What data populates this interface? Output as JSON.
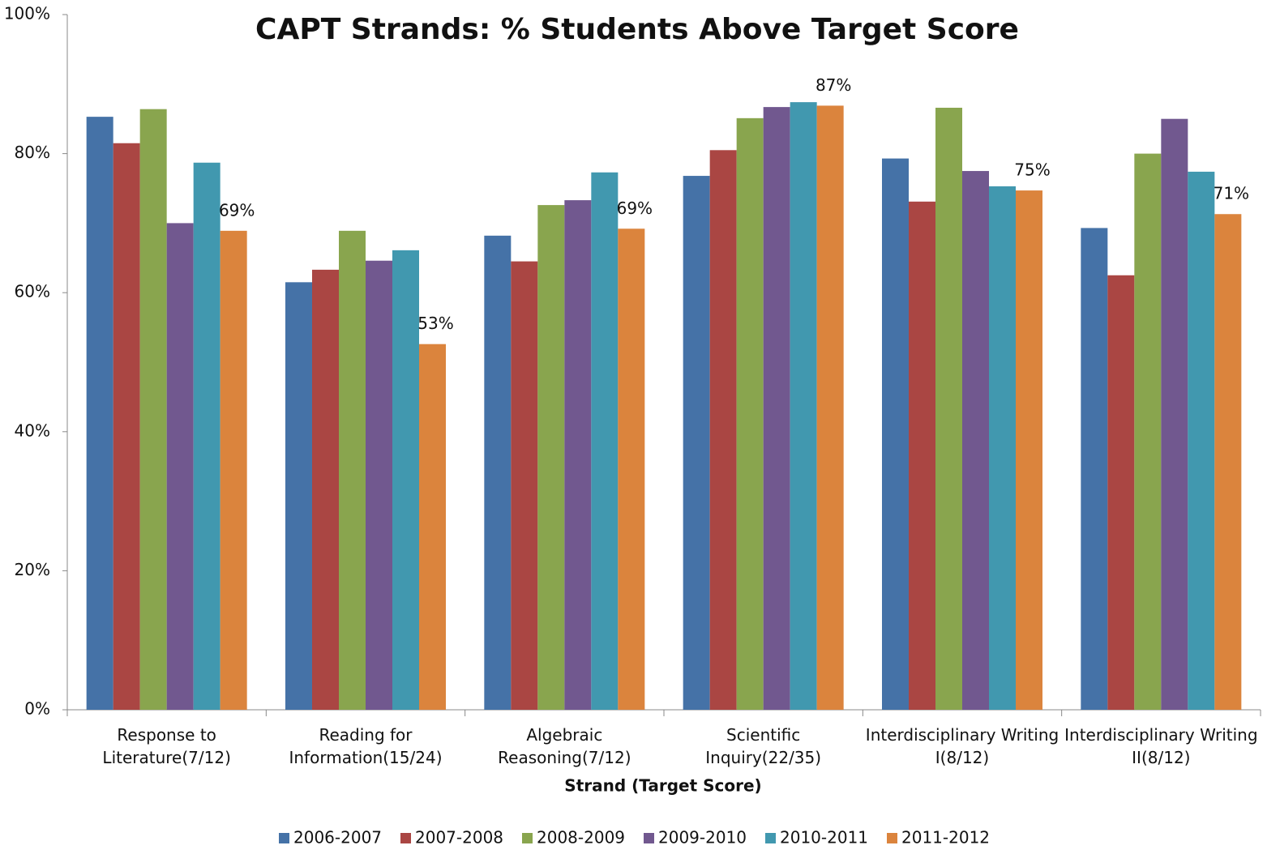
{
  "chart_data": {
    "type": "bar",
    "title": "CAPT Strands: % Students Above Target Score",
    "x_label": "Strand (Target Score)",
    "categories": [
      "Response to Literature(7/12)",
      "Reading for Information(15/24)",
      "Algebraic Reasoning(7/12)",
      "Scientific Inquiry(22/35)",
      "Interdisciplinary Writing I(8/12)",
      "Interdisciplinary Writing II(8/12)"
    ],
    "series": [
      {
        "name": "2006-2007",
        "color": "#4572a7",
        "values": [
          85.3,
          61.5,
          68.2,
          76.8,
          79.3,
          69.3
        ]
      },
      {
        "name": "2007-2008",
        "color": "#aa4643",
        "values": [
          81.5,
          63.3,
          64.5,
          80.5,
          73.1,
          62.5
        ]
      },
      {
        "name": "2008-2009",
        "color": "#89a54e",
        "values": [
          86.4,
          68.9,
          72.6,
          85.1,
          86.6,
          80.0
        ]
      },
      {
        "name": "2009-2010",
        "color": "#71588f",
        "values": [
          70.0,
          64.6,
          73.3,
          86.7,
          77.5,
          85.0
        ]
      },
      {
        "name": "2010-2011",
        "color": "#4198af",
        "values": [
          78.7,
          66.1,
          77.3,
          87.4,
          75.3,
          77.4
        ]
      },
      {
        "name": "2011-2012",
        "color": "#db843d",
        "values": [
          68.9,
          52.6,
          69.2,
          86.9,
          74.7,
          71.3
        ],
        "value_labels": [
          "69%",
          "53%",
          "69%",
          "87%",
          "75%",
          "71%"
        ]
      }
    ],
    "ylim": [
      0,
      100
    ],
    "yticks": [
      {
        "value": 0,
        "label": "0%"
      },
      {
        "value": 20,
        "label": "20%"
      },
      {
        "value": 40,
        "label": "40%"
      },
      {
        "value": 60,
        "label": "60%"
      },
      {
        "value": 80,
        "label": "80%"
      },
      {
        "value": 100,
        "label": "100%"
      }
    ],
    "grid": false,
    "legend": "bottom"
  }
}
